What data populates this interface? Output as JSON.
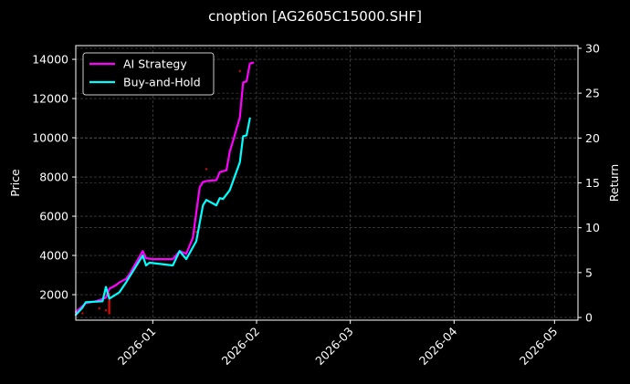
{
  "chart_data": {
    "type": "line",
    "title": "cnoption [AG2605C15000.SHF]",
    "ylabel": "Price",
    "y2label": "Return",
    "grid": true,
    "legend_position": "top-left",
    "background": "#000000",
    "xlim": [
      "2025-12-09",
      "2026-05-08"
    ],
    "ylim": [
      700,
      14700
    ],
    "y2lim": [
      -0.3,
      30.3
    ],
    "x_ticks": [
      "2026-01",
      "2026-02",
      "2026-03",
      "2026-04",
      "2026-05"
    ],
    "y_ticks": [
      2000,
      4000,
      6000,
      8000,
      10000,
      12000,
      14000
    ],
    "y2_ticks": [
      0,
      5,
      10,
      15,
      20,
      25,
      30
    ],
    "series": [
      {
        "name": "AI Strategy",
        "color": "#ff00ff",
        "axis": "right",
        "x": [
          "2025-12-09",
          "2025-12-12",
          "2025-12-15",
          "2025-12-18",
          "2025-12-19",
          "2025-12-21",
          "2025-12-22",
          "2025-12-24",
          "2025-12-25",
          "2025-12-29",
          "2025-12-30",
          "2026-01-01",
          "2026-01-07",
          "2026-01-09",
          "2026-01-11",
          "2026-01-13",
          "2026-01-15",
          "2026-01-16",
          "2026-01-17",
          "2026-01-20",
          "2026-01-21",
          "2026-01-23",
          "2026-01-24",
          "2026-01-25",
          "2026-01-27",
          "2026-01-28",
          "2026-01-29",
          "2026-01-30",
          "2026-01-31"
        ],
        "values": [
          0.6,
          1.6,
          1.8,
          2.2,
          3.2,
          3.6,
          3.9,
          4.3,
          4.8,
          7.4,
          6.6,
          6.5,
          6.5,
          7.4,
          7.1,
          8.9,
          14.5,
          15.1,
          15.2,
          15.3,
          16.2,
          16.4,
          18.5,
          19.7,
          22.3,
          26.2,
          26.3,
          28.3,
          28.4
        ]
      },
      {
        "name": "Buy-and-Hold",
        "color": "#00ffff",
        "axis": "right",
        "x": [
          "2025-12-09",
          "2025-12-11",
          "2025-12-12",
          "2025-12-17",
          "2025-12-18",
          "2025-12-19",
          "2025-12-22",
          "2025-12-24",
          "2025-12-29",
          "2025-12-30",
          "2025-12-31",
          "2026-01-07",
          "2026-01-09",
          "2026-01-11",
          "2026-01-14",
          "2026-01-16",
          "2026-01-17",
          "2026-01-20",
          "2026-01-21",
          "2026-01-22",
          "2026-01-24",
          "2026-01-27",
          "2026-01-28",
          "2026-01-29",
          "2026-01-30"
        ],
        "values": [
          0.3,
          1.1,
          1.7,
          1.8,
          3.4,
          2.1,
          2.8,
          3.9,
          6.9,
          5.8,
          6.1,
          5.8,
          7.4,
          6.5,
          8.5,
          12.5,
          13.1,
          12.5,
          13.3,
          13.2,
          14.2,
          17.3,
          20.2,
          20.3,
          22.2
        ]
      }
    ],
    "price_series": {
      "color": "#ff0000",
      "axis": "left",
      "x": [
        "2025-12-10",
        "2025-12-11",
        "2025-12-16",
        "2025-12-18",
        "2026-01-14",
        "2026-01-17",
        "2026-01-27"
      ],
      "values": [
        1200,
        1050,
        1300,
        1200,
        5200,
        8400,
        13400
      ],
      "spike": {
        "x": "2025-12-19",
        "from": 1000,
        "to": 2100
      }
    }
  }
}
